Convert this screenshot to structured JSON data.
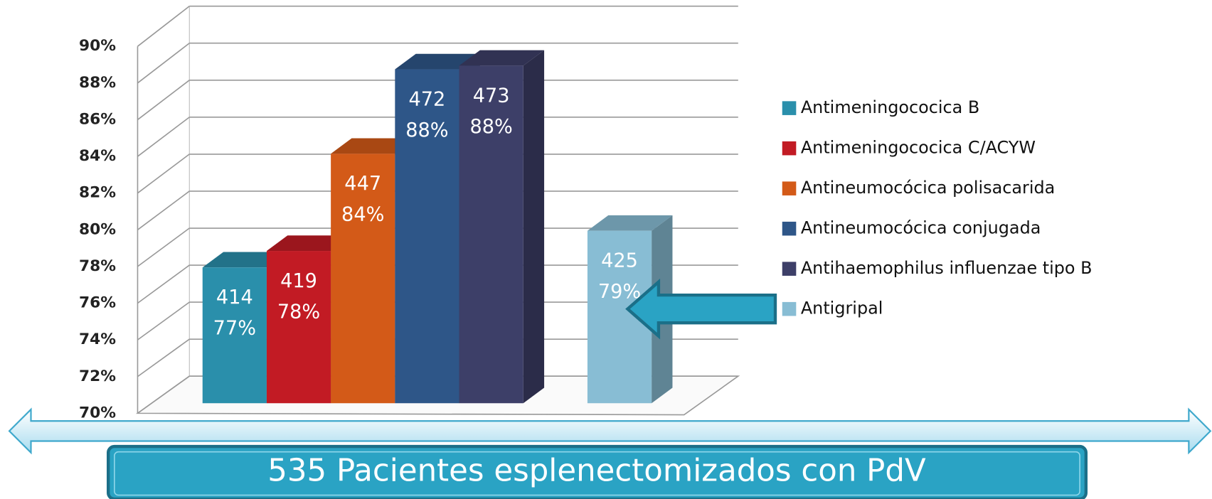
{
  "chart_data": {
    "type": "bar3d",
    "ylim": [
      70,
      90
    ],
    "yticks": [
      {
        "value": 70,
        "label": "70%"
      },
      {
        "value": 72,
        "label": "72%"
      },
      {
        "value": 74,
        "label": "74%"
      },
      {
        "value": 76,
        "label": "76%"
      },
      {
        "value": 78,
        "label": "78%"
      },
      {
        "value": 80,
        "label": "80%"
      },
      {
        "value": 82,
        "label": "82%"
      },
      {
        "value": 84,
        "label": "84%"
      },
      {
        "value": 86,
        "label": "86%"
      },
      {
        "value": 88,
        "label": "88%"
      },
      {
        "value": 90,
        "label": "90%"
      }
    ],
    "grid": true,
    "legend": "right",
    "series": [
      {
        "name": "Antimeningococica B",
        "color": "#2a8fab",
        "values": [
          77.4
        ],
        "value_labels": [
          "77%"
        ],
        "counts": [
          414
        ]
      },
      {
        "name": "Antimeningococica C/ACYW",
        "color": "#c21b24",
        "values": [
          78.3
        ],
        "value_labels": [
          "78%"
        ],
        "counts": [
          419
        ]
      },
      {
        "name": "Antineumocócica polisacarida",
        "color": "#d35a18",
        "values": [
          83.6
        ],
        "value_labels": [
          "84%"
        ],
        "counts": [
          447
        ]
      },
      {
        "name": "Antineumocócica conjugada",
        "color": "#2e5688",
        "values": [
          88.2
        ],
        "value_labels": [
          "88%"
        ],
        "counts": [
          472
        ]
      },
      {
        "name": "Antihaemophilus influenzae tipo B",
        "color": "#3d3f68",
        "values": [
          88.4
        ],
        "value_labels": [
          "88%"
        ],
        "counts": [
          473
        ]
      },
      {
        "name": "Antigripal",
        "color": "#88bdd4",
        "values": [
          79.4
        ],
        "value_labels": [
          "79%"
        ],
        "counts": [
          425
        ]
      }
    ],
    "annotation": "535 Pacientes esplenectomizados con PdV"
  }
}
